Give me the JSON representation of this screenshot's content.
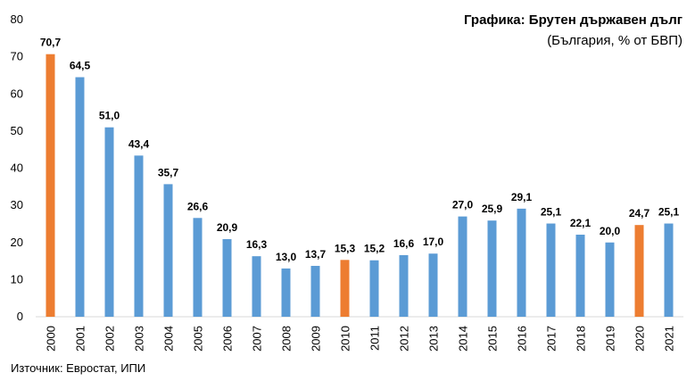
{
  "chart_data": {
    "type": "bar",
    "title": "Графика: Брутен държавен дълг",
    "subtitle": "(България, % от БВП)",
    "source": "Източник: Евростат, ИПИ",
    "categories": [
      "2000",
      "2001",
      "2002",
      "2003",
      "2004",
      "2005",
      "2006",
      "2007",
      "2008",
      "2009",
      "2010",
      "2011",
      "2012",
      "2013",
      "2014",
      "2015",
      "2016",
      "2017",
      "2018",
      "2019",
      "2020",
      "2021"
    ],
    "values": [
      70.7,
      64.5,
      51.0,
      43.4,
      35.7,
      26.6,
      20.9,
      16.3,
      13.0,
      13.7,
      15.3,
      15.2,
      16.6,
      17.0,
      27.0,
      25.9,
      29.1,
      25.1,
      22.1,
      20.0,
      24.7,
      25.1
    ],
    "value_labels": [
      "70,7",
      "64,5",
      "51,0",
      "43,4",
      "35,7",
      "26,6",
      "20,9",
      "16,3",
      "13,0",
      "13,7",
      "15,3",
      "15,2",
      "16,6",
      "17,0",
      "27,0",
      "25,9",
      "29,1",
      "25,1",
      "22,1",
      "20,0",
      "24,7",
      "25,1"
    ],
    "highlighted_categories": [
      "2000",
      "2010",
      "2020"
    ],
    "ylim": [
      0,
      80
    ],
    "yticks": [
      0,
      10,
      20,
      30,
      40,
      50,
      60,
      70,
      80
    ],
    "colors": {
      "default": "#5b9bd5",
      "highlight": "#ed7d31"
    },
    "grid": false,
    "legend": "none",
    "xlabel": "",
    "ylabel": ""
  }
}
